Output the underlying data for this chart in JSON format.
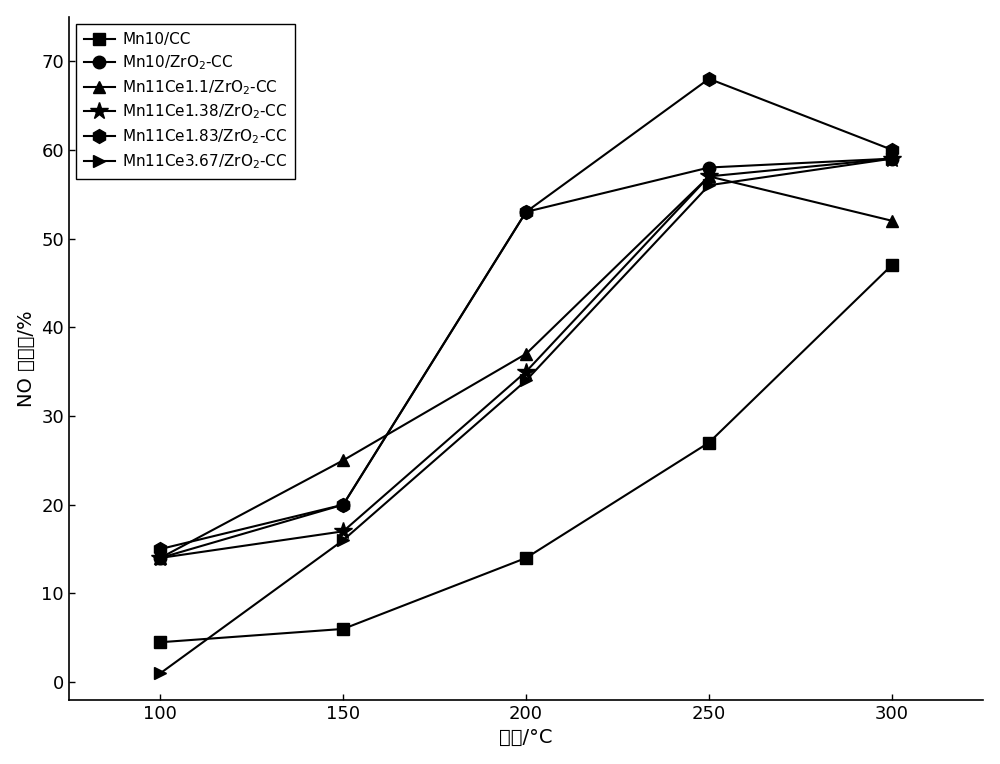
{
  "x": [
    100,
    150,
    200,
    250,
    300
  ],
  "series": [
    {
      "label": "Mn10/CC",
      "y": [
        4.5,
        6.0,
        14.0,
        27.0,
        47.0
      ],
      "marker": "s",
      "markersize": 8
    },
    {
      "label": "Mn10/ZrO$_2$-CC",
      "y": [
        14.0,
        20.0,
        53.0,
        58.0,
        59.0
      ],
      "marker": "o",
      "markersize": 9
    },
    {
      "label": "Mn11Ce1.1/ZrO$_2$-CC",
      "y": [
        14.0,
        25.0,
        37.0,
        57.0,
        52.0
      ],
      "marker": "^",
      "markersize": 9
    },
    {
      "label": "Mn11Ce1.38/ZrO$_2$-CC",
      "y": [
        14.0,
        17.0,
        35.0,
        57.0,
        59.0
      ],
      "marker": "*",
      "markersize": 13
    },
    {
      "label": "Mn11Ce1.83/ZrO$_2$-CC",
      "y": [
        15.0,
        20.0,
        53.0,
        68.0,
        60.0
      ],
      "marker": "h",
      "markersize": 10
    },
    {
      "label": "Mn11Ce3.67/ZrO$_2$-CC",
      "y": [
        1.0,
        16.0,
        34.0,
        56.0,
        59.0
      ],
      "marker": ">",
      "markersize": 9
    }
  ],
  "xlabel": "温度/°C",
  "ylabel": "NO 转化率/%",
  "xlim": [
    75,
    325
  ],
  "ylim": [
    -2,
    75
  ],
  "xticks": [
    100,
    150,
    200,
    250,
    300
  ],
  "yticks": [
    0,
    10,
    20,
    30,
    40,
    50,
    60,
    70
  ],
  "axis_fontsize": 14,
  "tick_fontsize": 13,
  "legend_fontsize": 11,
  "linewidth": 1.5,
  "color": "#000000",
  "background_color": "#ffffff"
}
